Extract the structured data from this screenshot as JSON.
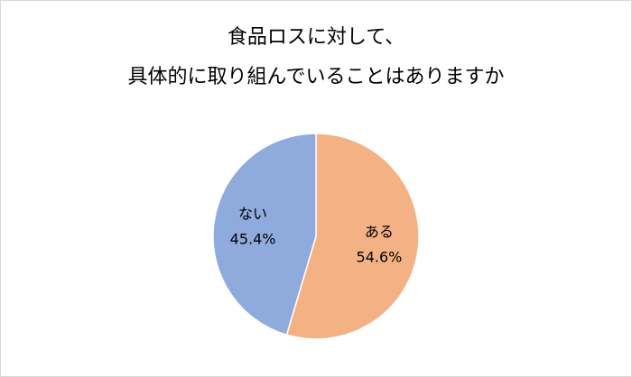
{
  "chart_data": {
    "type": "pie",
    "title": [
      "食品ロスに対して、",
      "具体的に取り組んでいることはありますか"
    ],
    "categories": [
      "ある",
      "ない"
    ],
    "values": [
      54.6,
      45.4
    ],
    "value_labels": [
      "54.6%",
      "45.4%"
    ],
    "colors": [
      "#f4b183",
      "#8faadc"
    ]
  }
}
